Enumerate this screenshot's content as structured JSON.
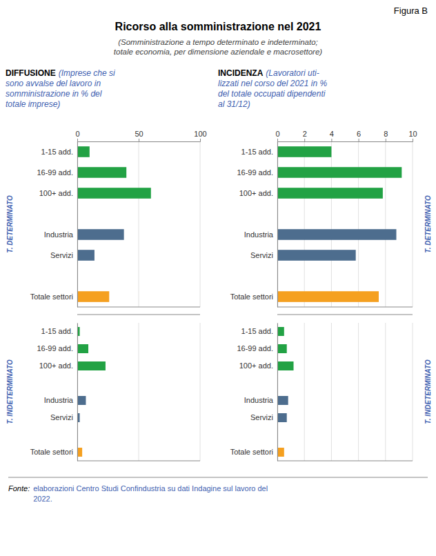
{
  "chart_data": [
    {
      "type": "bar",
      "orientation": "horizontal",
      "title": "Ricorso alla somministrazione nel 2021",
      "subtitle": "(Somministrazione a tempo determinato e indeterminato;\ntotale economia, per dimensione aziendale e macrosettore)",
      "annotations": [
        "Figura B",
        "DIFFUSIONE",
        "(Imprese che si\nsono avvalse del lavoro in\nsomministrazione in % del\ntotale imprese)",
        "T. DETERMINATO",
        "Fonte:",
        "elaborazioni Centro Studi Confindustria su dati Indagine sul lavoro del\n2022."
      ],
      "categories": [
        "1-15 add.",
        "16-99 add.",
        "100+ add.",
        null,
        "Industria",
        "Servizi",
        null,
        "Totale settori"
      ],
      "values": [
        10,
        40,
        60,
        null,
        38,
        14,
        null,
        26
      ],
      "colors": [
        "#22a244",
        "#22a244",
        "#22a244",
        null,
        "#4d6d8e",
        "#4d6d8e",
        null,
        "#f5a020"
      ],
      "xlim": [
        0,
        100
      ],
      "xticks": [
        0,
        50,
        100
      ],
      "grid": true
    },
    {
      "type": "bar",
      "orientation": "horizontal",
      "annotations": [
        "T. INDETERMINATO"
      ],
      "categories": [
        "1-15 add.",
        "16-99 add.",
        "100+ add.",
        null,
        "Industria",
        "Servizi",
        null,
        "Totale settori"
      ],
      "values": [
        2,
        9,
        23,
        null,
        7,
        2,
        null,
        4
      ],
      "colors": [
        "#22a244",
        "#22a244",
        "#22a244",
        null,
        "#4d6d8e",
        "#4d6d8e",
        null,
        "#f5a020"
      ],
      "xlim": [
        0,
        100
      ],
      "xticks": [
        0,
        50,
        100
      ],
      "grid": true,
      "tick_labels": "y"
    },
    {
      "type": "bar",
      "orientation": "horizontal",
      "annotations": [
        "INCIDENZA",
        "(Lavoratori uti-\nlizzati nel corso del 2021 in %\ndel totale occupati dipendenti\nal 31/12)",
        "T. DETERMINATO"
      ],
      "categories": [
        "1-15 add.",
        "16-99 add.",
        "100+ add.",
        null,
        "Industria",
        "Servizi",
        null,
        "Totale settori"
      ],
      "values": [
        4.0,
        9.2,
        7.8,
        null,
        8.8,
        5.8,
        null,
        7.5
      ],
      "colors": [
        "#22a244",
        "#22a244",
        "#22a244",
        null,
        "#4d6d8e",
        "#4d6d8e",
        null,
        "#f5a020"
      ],
      "xlim": [
        0,
        10
      ],
      "xticks": [
        0,
        2,
        4,
        6,
        8,
        10
      ],
      "grid": true
    },
    {
      "type": "bar",
      "orientation": "horizontal",
      "annotations": [
        "T. INDETERMINATO"
      ],
      "categories": [
        "1-15 add.",
        "16-99 add.",
        "100+ add.",
        null,
        "Industria",
        "Servizi",
        null,
        "Totale settori"
      ],
      "values": [
        0.5,
        0.7,
        1.2,
        null,
        0.8,
        0.7,
        null,
        0.5
      ],
      "colors": [
        "#22a244",
        "#22a244",
        "#22a244",
        null,
        "#4d6d8e",
        "#4d6d8e",
        null,
        "#f5a020"
      ],
      "xlim": [
        0,
        10
      ],
      "xticks": [
        0,
        2,
        4,
        6,
        8,
        10
      ],
      "grid": true,
      "tick_labels": "y"
    }
  ]
}
